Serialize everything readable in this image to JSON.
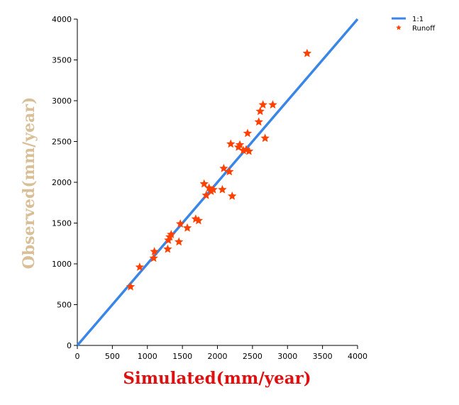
{
  "chart_data": {
    "type": "scatter",
    "xlabel": "Simulated(mm/year)",
    "ylabel": "Observed(mm/year)",
    "xlim": [
      0,
      4000
    ],
    "ylim": [
      0,
      4000
    ],
    "x_ticks": [
      "0",
      "500",
      "1000",
      "1500",
      "2000",
      "2500",
      "3000",
      "3500",
      "4000"
    ],
    "y_ticks": [
      "0",
      "500",
      "1000",
      "1500",
      "2000",
      "2500",
      "3000",
      "3500",
      "4000"
    ],
    "grid": false,
    "legend_position": "top-right",
    "series": [
      {
        "name": "1:1",
        "kind": "line",
        "color": "#3a86e8",
        "points": [
          [
            0,
            0
          ],
          [
            4000,
            4000
          ]
        ]
      },
      {
        "name": "Runoff",
        "kind": "marker",
        "marker": "star",
        "color": "#ff4000",
        "points": [
          [
            760,
            720
          ],
          [
            890,
            960
          ],
          [
            1090,
            1070
          ],
          [
            1100,
            1150
          ],
          [
            1290,
            1180
          ],
          [
            1300,
            1290
          ],
          [
            1320,
            1330
          ],
          [
            1340,
            1360
          ],
          [
            1450,
            1270
          ],
          [
            1470,
            1490
          ],
          [
            1570,
            1440
          ],
          [
            1690,
            1550
          ],
          [
            1730,
            1530
          ],
          [
            1810,
            1980
          ],
          [
            1840,
            1840
          ],
          [
            1880,
            1930
          ],
          [
            1910,
            1890
          ],
          [
            1940,
            1910
          ],
          [
            2070,
            1910
          ],
          [
            2090,
            2170
          ],
          [
            2170,
            2130
          ],
          [
            2190,
            2470
          ],
          [
            2210,
            1830
          ],
          [
            2300,
            2430
          ],
          [
            2320,
            2460
          ],
          [
            2370,
            2390
          ],
          [
            2410,
            2400
          ],
          [
            2430,
            2600
          ],
          [
            2450,
            2380
          ],
          [
            2590,
            2740
          ],
          [
            2610,
            2870
          ],
          [
            2650,
            2950
          ],
          [
            2680,
            2540
          ],
          [
            2790,
            2950
          ],
          [
            3280,
            3580
          ]
        ]
      }
    ]
  },
  "colors": {
    "xlabel_color": "#e01010",
    "ylabel_color": "#d8bf98",
    "axis_color": "#000000"
  }
}
